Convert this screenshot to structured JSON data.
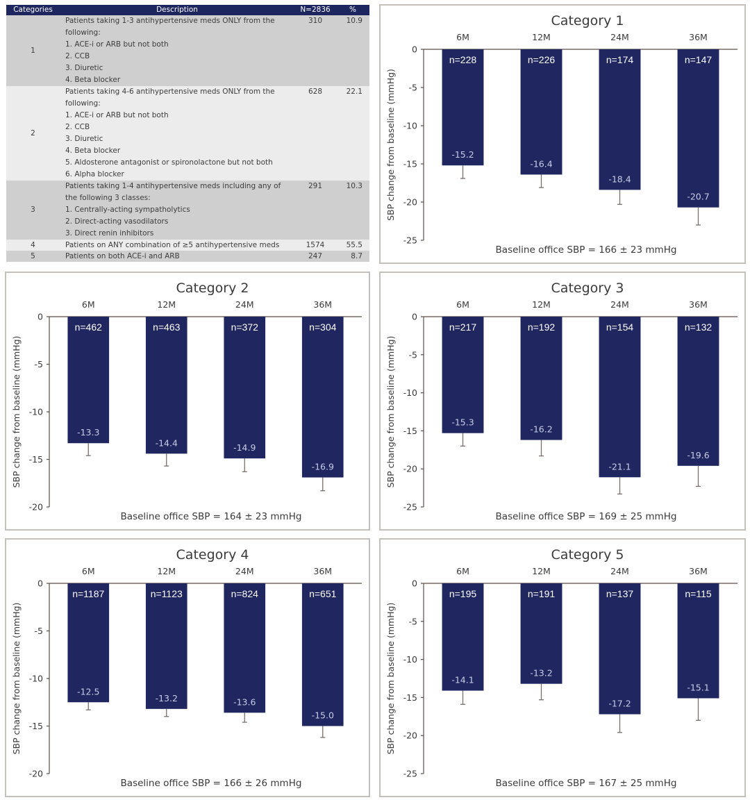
{
  "table": {
    "headers": [
      "Categories",
      "Description",
      "N=2836",
      "%"
    ],
    "rows": [
      {
        "category": "1",
        "lines": [
          "Patients taking 1-3 antihypertensive meds ONLY from the",
          "following:",
          "1. ACE-i or ARB but not both",
          "2. CCB",
          "3. Diuretic",
          "4. Beta blocker"
        ],
        "n": "310",
        "pct": "10.9"
      },
      {
        "category": "2",
        "lines": [
          "Patients taking 4-6 antihypertensive meds ONLY from the",
          "following:",
          "1. ACE-i or ARB but not both",
          "2. CCB",
          "3. Diuretic",
          "4. Beta blocker",
          "5. Aldosterone antagonist or spironolactone but not both",
          "6. Alpha blocker"
        ],
        "n": "628",
        "pct": "22.1"
      },
      {
        "category": "3",
        "lines": [
          "Patients taking 1-4 antihypertensive meds including any of",
          "the following 3 classes:",
          "1. Centrally-acting sympatholytics",
          "2. Direct-acting vasodilators",
          "3. Direct renin inhibitors"
        ],
        "n": "291",
        "pct": "10.3"
      },
      {
        "category": "4",
        "lines": [
          "Patients on ANY combination of ≥5 antihypertensive meds"
        ],
        "n": "1574",
        "pct": "55.5"
      },
      {
        "category": "5",
        "lines": [
          "Patients on both ACE-i and ARB"
        ],
        "n": "247",
        "pct": "8.7"
      }
    ]
  },
  "colors": {
    "bar": "#1f2660",
    "header_bg": "#1e2660",
    "row_dark": "#cfcfcf",
    "row_light": "#ececec",
    "panel_border": "#c4c0bc",
    "axis": "#5a4e48",
    "error_bar": "#7a6e68"
  },
  "chart_data": [
    {
      "type": "bar",
      "title": "Category 1",
      "categories": [
        "6M",
        "12M",
        "24M",
        "36M"
      ],
      "values": [
        -15.2,
        -16.4,
        -18.4,
        -20.7
      ],
      "error_low": [
        -16.9,
        -18.1,
        -20.3,
        -23.0
      ],
      "n_labels": [
        "n=228",
        "n=226",
        "n=174",
        "n=147"
      ],
      "value_labels": [
        "-15.2",
        "-16.4",
        "-18.4",
        "-20.7"
      ],
      "ylabel": "SBP change from baseline (mmHg)",
      "ylim": [
        -25,
        0
      ],
      "yticks": [
        0,
        -5,
        -10,
        -15,
        -20,
        -25
      ],
      "ytick_labels": [
        "0",
        "-5",
        "-10",
        "-15",
        "-20",
        "-25"
      ],
      "xlabel_position": "top",
      "annotation": "Baseline office SBP = 166 ± 23 mmHg",
      "grid": false
    },
    {
      "type": "bar",
      "title": "Category 2",
      "categories": [
        "6M",
        "12M",
        "24M",
        "36M"
      ],
      "values": [
        -13.3,
        -14.4,
        -14.9,
        -16.9
      ],
      "error_low": [
        -14.6,
        -15.7,
        -16.3,
        -18.3
      ],
      "n_labels": [
        "n=462",
        "n=463",
        "n=372",
        "n=304"
      ],
      "value_labels": [
        "-13.3",
        "-14.4",
        "-14.9",
        "-16.9"
      ],
      "ylabel": "SBP change from baseline (mmHg)",
      "ylim": [
        -20,
        0
      ],
      "yticks": [
        0,
        -5,
        -10,
        -15,
        -20
      ],
      "ytick_labels": [
        "0",
        "-5",
        "-10",
        "-15",
        "-20"
      ],
      "xlabel_position": "top",
      "annotation": "Baseline office SBP = 164 ± 23 mmHg",
      "grid": false
    },
    {
      "type": "bar",
      "title": "Category 3",
      "categories": [
        "6M",
        "12M",
        "24M",
        "36M"
      ],
      "values": [
        -15.3,
        -16.2,
        -21.1,
        -19.6
      ],
      "error_low": [
        -17.0,
        -18.3,
        -23.3,
        -22.3
      ],
      "n_labels": [
        "n=217",
        "n=192",
        "n=154",
        "n=132"
      ],
      "value_labels": [
        "-15.3",
        "-16.2",
        "-21.1",
        "-19.6"
      ],
      "ylabel": "SBP change from baseline (mmHg)",
      "ylim": [
        -25,
        0
      ],
      "yticks": [
        0,
        -5,
        -10,
        -15,
        -20,
        -25
      ],
      "ytick_labels": [
        "0",
        "-5",
        "-10",
        "-15",
        "-20",
        "-25"
      ],
      "xlabel_position": "top",
      "annotation": "Baseline office SBP = 169 ± 25 mmHg",
      "grid": false
    },
    {
      "type": "bar",
      "title": "Category 4",
      "categories": [
        "6M",
        "12M",
        "24M",
        "36M"
      ],
      "values": [
        -12.5,
        -13.2,
        -13.6,
        -15.0
      ],
      "error_low": [
        -13.3,
        -14.0,
        -14.6,
        -16.2
      ],
      "n_labels": [
        "n=1187",
        "n=1123",
        "n=824",
        "n=651"
      ],
      "value_labels": [
        "-12.5",
        "-13.2",
        "-13.6",
        "-15.0"
      ],
      "ylabel": "SBP change from baseline (mmHg)",
      "ylim": [
        -20,
        0
      ],
      "yticks": [
        0,
        -5,
        -10,
        -15,
        -20
      ],
      "ytick_labels": [
        "0",
        "-5",
        "-10",
        "-15",
        "-20"
      ],
      "xlabel_position": "top",
      "annotation": "Baseline office SBP = 166 ± 26 mmHg",
      "grid": false
    },
    {
      "type": "bar",
      "title": "Category 5",
      "categories": [
        "6M",
        "12M",
        "24M",
        "36M"
      ],
      "values": [
        -14.1,
        -13.2,
        -17.2,
        -15.1
      ],
      "error_low": [
        -15.9,
        -15.3,
        -19.6,
        -18.0
      ],
      "n_labels": [
        "n=195",
        "n=191",
        "n=137",
        "n=115"
      ],
      "value_labels": [
        "-14.1",
        "-13.2",
        "-17.2",
        "-15.1"
      ],
      "ylabel": "SBP change from baseline (mmHg)",
      "ylim": [
        -25,
        0
      ],
      "yticks": [
        0,
        -5,
        -10,
        -15,
        -20,
        -25
      ],
      "ytick_labels": [
        "0",
        "-5",
        "-10",
        "-15",
        "-20",
        "-25"
      ],
      "xlabel_position": "top",
      "annotation": "Baseline office SBP = 167 ± 25 mmHg",
      "grid": false
    }
  ]
}
